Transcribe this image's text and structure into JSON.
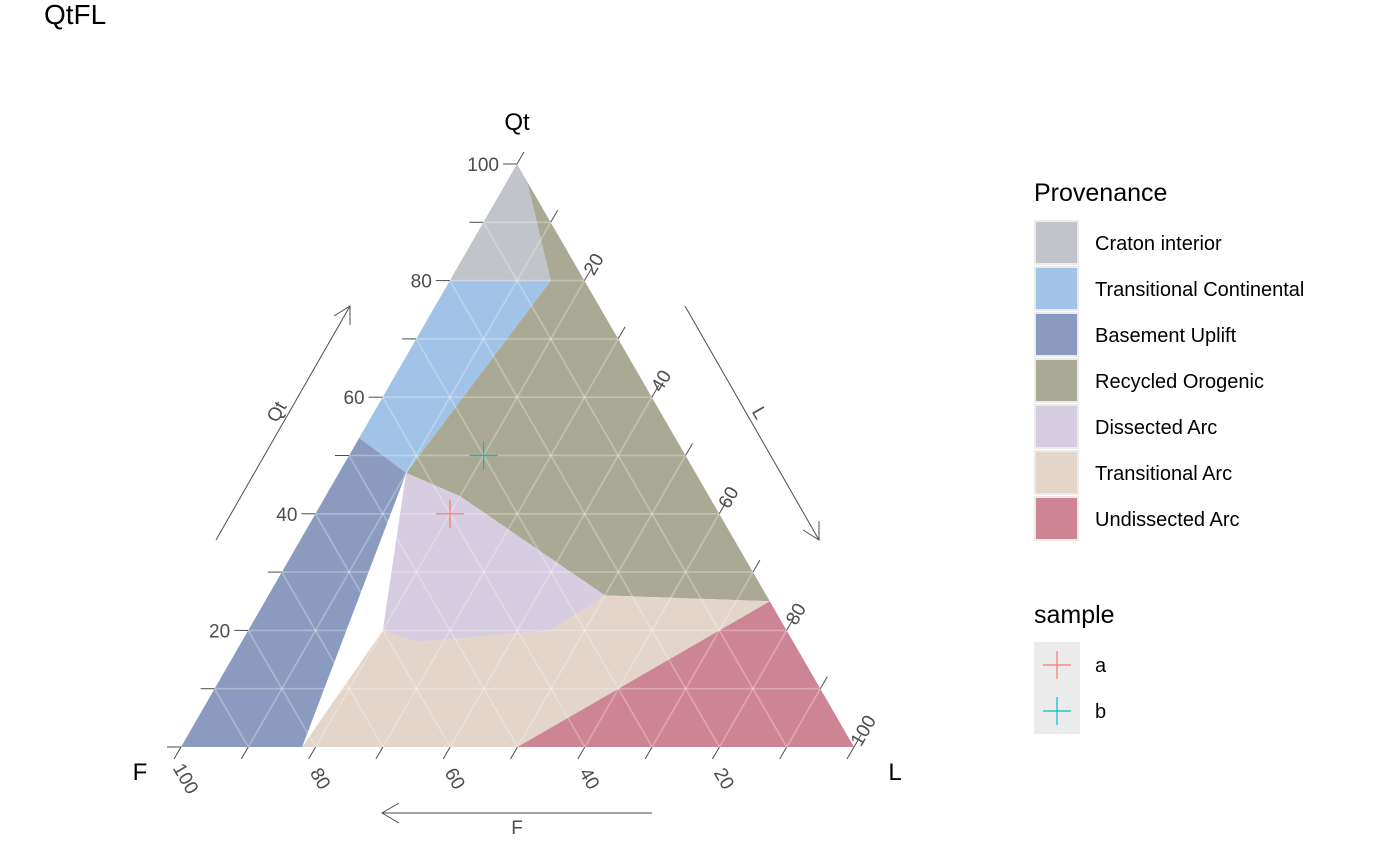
{
  "chart_data": {
    "type": "ternary",
    "title": "QtFL",
    "axes": {
      "top": {
        "name": "Qt",
        "arrow_label": "Qt"
      },
      "left": {
        "name": "F",
        "arrow_label": "F"
      },
      "right": {
        "name": "L",
        "arrow_label": "L"
      }
    },
    "ticks": {
      "qt": [
        "20",
        "40",
        "60",
        "80",
        "100"
      ],
      "l": [
        "20",
        "40",
        "60",
        "80",
        "100"
      ],
      "f": [
        "100",
        "80",
        "60",
        "40",
        "20"
      ]
    },
    "grid": true,
    "legend_position": "right",
    "regions": [
      {
        "name": "Craton interior",
        "color": "#c1c5ca",
        "polygon": [
          [
            100,
            0,
            0
          ],
          [
            80,
            20,
            0
          ],
          [
            80,
            5,
            15
          ],
          [
            97,
            0,
            3
          ]
        ]
      },
      {
        "name": "Transitional Continental",
        "color": "#a2c3e8",
        "polygon": [
          [
            80,
            20,
            0
          ],
          [
            53,
            47,
            0
          ],
          [
            47,
            43,
            10
          ],
          [
            80,
            5,
            15
          ]
        ]
      },
      {
        "name": "Basement Uplift",
        "color": "#8b9bbf",
        "polygon": [
          [
            53,
            47,
            0
          ],
          [
            0,
            100,
            0
          ],
          [
            0,
            82,
            18
          ],
          [
            47,
            43,
            10
          ]
        ]
      },
      {
        "name": "Recycled Orogenic",
        "color": "#aaaa94",
        "polygon": [
          [
            97,
            0,
            3
          ],
          [
            80,
            5,
            15
          ],
          [
            47,
            43,
            10
          ],
          [
            43,
            37,
            20
          ],
          [
            26,
            24,
            50
          ],
          [
            25,
            0,
            75
          ]
        ]
      },
      {
        "name": "Dissected Arc",
        "color": "#d6cde1",
        "polygon": [
          [
            47,
            43,
            10
          ],
          [
            43,
            37,
            20
          ],
          [
            26,
            24,
            50
          ],
          [
            20,
            35,
            45
          ],
          [
            18,
            56,
            26
          ],
          [
            20,
            60,
            20
          ]
        ]
      },
      {
        "name": "Transitional Arc",
        "color": "#e3d5c9",
        "polygon": [
          [
            20,
            60,
            20
          ],
          [
            0,
            82,
            18
          ],
          [
            0,
            50,
            50
          ],
          [
            25,
            0,
            75
          ],
          [
            26,
            24,
            50
          ],
          [
            20,
            35,
            45
          ],
          [
            18,
            56,
            26
          ]
        ]
      },
      {
        "name": "Undissected Arc",
        "color": "#cd8495",
        "polygon": [
          [
            25,
            0,
            75
          ],
          [
            0,
            50,
            50
          ],
          [
            0,
            0,
            100
          ]
        ]
      }
    ],
    "points": [
      {
        "series": "a",
        "Qt": 40,
        "F": 40,
        "L": 20,
        "color": "#f8766d"
      },
      {
        "series": "b",
        "Qt": 50,
        "F": 30,
        "L": 20,
        "color": "#00bfc4"
      }
    ],
    "legends": {
      "provenance": {
        "title": "Provenance",
        "items": [
          "Craton interior",
          "Transitional Continental",
          "Basement Uplift",
          "Recycled Orogenic",
          "Dissected Arc",
          "Transitional Arc",
          "Undissected Arc"
        ]
      },
      "sample": {
        "title": "sample",
        "items": [
          "a",
          "b"
        ]
      }
    }
  }
}
